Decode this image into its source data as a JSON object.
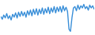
{
  "chart_data": {
    "type": "line",
    "color": "#3a8fd8",
    "tick_labels": false,
    "grid": false,
    "ylim": [
      0,
      45
    ],
    "values": [
      24,
      20,
      26,
      22,
      28,
      21,
      25,
      19,
      27,
      23,
      29,
      22,
      30,
      24,
      31,
      25,
      30,
      23,
      32,
      26,
      33,
      25,
      34,
      27,
      35,
      26,
      34,
      28,
      36,
      27,
      35,
      29,
      37,
      28,
      36,
      30,
      38,
      29,
      37,
      31,
      38,
      30,
      39,
      32,
      37,
      31,
      6,
      3,
      22,
      36,
      38,
      32,
      40,
      34,
      39,
      36,
      41,
      35,
      38,
      33,
      40,
      36,
      39,
      34
    ]
  }
}
